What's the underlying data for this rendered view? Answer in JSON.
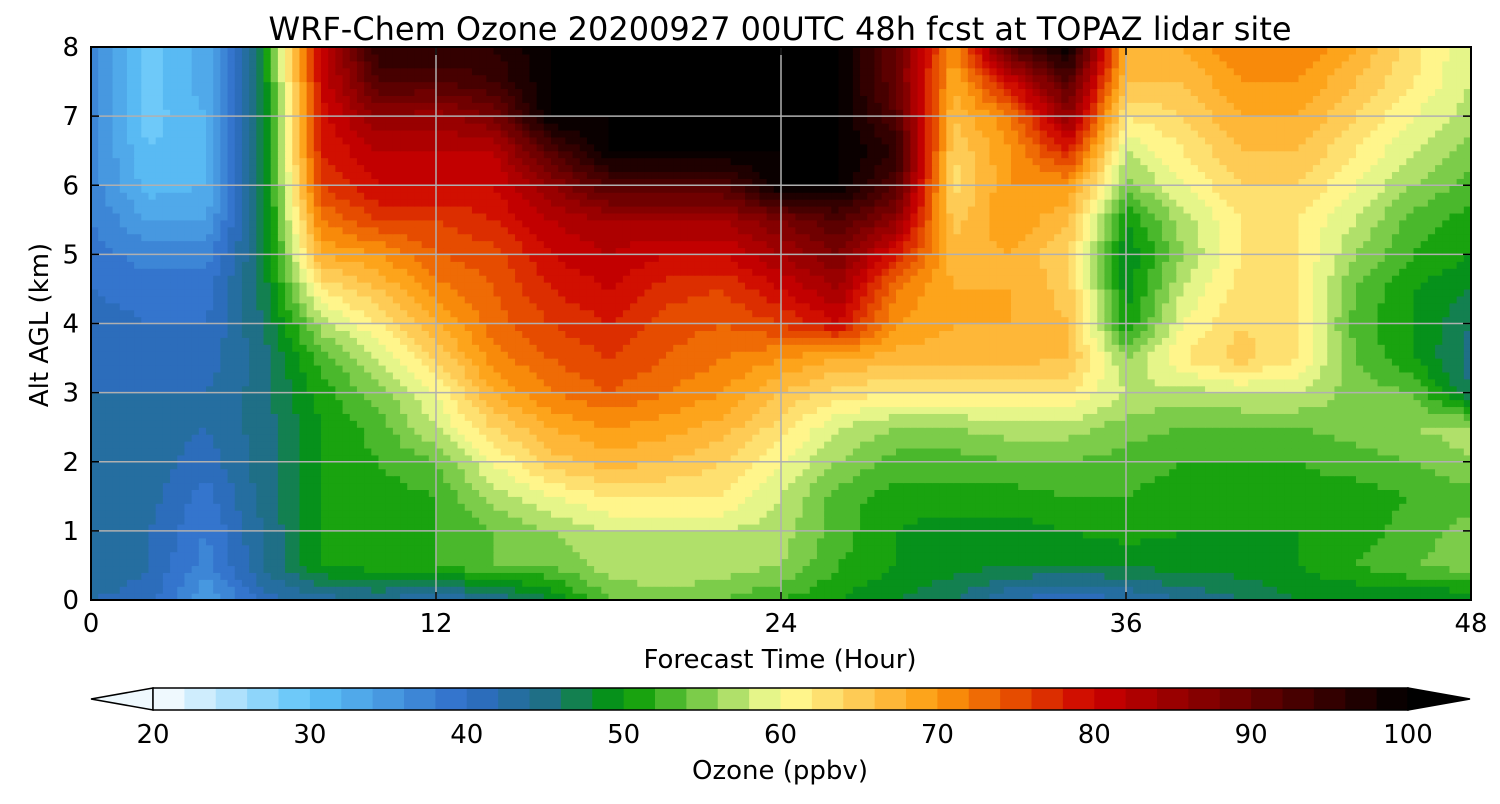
{
  "chart_data": {
    "type": "heatmap",
    "title": "WRF-Chem Ozone 20200927 00UTC 48h fcst at TOPAZ lidar site",
    "xlabel": "Forecast Time (Hour)",
    "ylabel": "Alt AGL (km)",
    "xlim": [
      0,
      48
    ],
    "ylim": [
      0,
      8
    ],
    "xticks": [
      0,
      12,
      24,
      36,
      48
    ],
    "yticks": [
      0,
      1,
      2,
      3,
      4,
      5,
      6,
      7,
      8
    ],
    "grid": true,
    "colorbar": {
      "label": "Ozone  (ppbv)",
      "min": 20,
      "max": 100,
      "ticks": [
        20,
        30,
        40,
        50,
        60,
        70,
        80,
        90,
        100
      ],
      "extend": "both",
      "stops": [
        {
          "value": 20,
          "color": "#ffffff"
        },
        {
          "value": 30,
          "color": "#5ec3f8"
        },
        {
          "value": 40,
          "color": "#2f6cc8"
        },
        {
          "value": 45,
          "color": "#1f6f86"
        },
        {
          "value": 50,
          "color": "#009900"
        },
        {
          "value": 55,
          "color": "#7ccc4a"
        },
        {
          "value": 60,
          "color": "#ffff99"
        },
        {
          "value": 65,
          "color": "#fecb55"
        },
        {
          "value": 70,
          "color": "#fd9a0c"
        },
        {
          "value": 75,
          "color": "#e64c00"
        },
        {
          "value": 80,
          "color": "#cc0000"
        },
        {
          "value": 90,
          "color": "#660000"
        },
        {
          "value": 100,
          "color": "#000000"
        }
      ]
    },
    "grid_x": [
      0,
      2,
      4,
      6,
      8,
      10,
      12,
      14,
      16,
      18,
      20,
      22,
      24,
      26,
      28,
      30,
      32,
      34,
      36,
      38,
      40,
      42,
      44,
      46,
      48
    ],
    "grid_y": [
      0,
      0.5,
      1,
      1.5,
      2,
      2.5,
      3,
      3.5,
      4,
      4.5,
      5,
      5.5,
      6,
      6.5,
      7,
      7.5,
      8
    ],
    "z": [
      [
        42,
        41,
        34,
        41,
        43,
        44,
        42,
        44,
        48,
        54,
        55,
        54,
        52,
        50,
        48,
        46,
        42,
        40,
        42,
        44,
        46,
        48,
        48,
        48,
        48
      ],
      [
        44,
        42,
        37,
        44,
        50,
        51,
        52,
        54,
        54,
        57,
        58,
        57,
        56,
        52,
        50,
        49,
        48,
        48,
        48,
        49,
        49,
        50,
        52,
        54,
        55
      ],
      [
        44,
        42,
        38,
        44,
        50,
        51,
        52,
        54,
        56,
        58,
        58,
        58,
        57,
        53,
        50,
        49,
        49,
        50,
        51,
        50,
        50,
        50,
        51,
        53,
        55
      ],
      [
        44,
        43,
        39,
        45,
        50,
        51,
        52,
        57,
        60,
        62,
        62,
        62,
        58,
        53,
        51,
        51,
        51,
        52,
        52,
        51,
        51,
        51,
        51,
        52,
        53
      ],
      [
        44,
        43,
        41,
        45,
        50,
        52,
        54,
        60,
        65,
        67,
        66,
        64,
        60,
        56,
        53,
        53,
        54,
        54,
        53,
        52,
        52,
        52,
        53,
        54,
        56
      ],
      [
        43,
        43,
        42,
        45,
        50,
        53,
        58,
        64,
        68,
        70,
        69,
        67,
        63,
        58,
        56,
        56,
        57,
        57,
        55,
        54,
        54,
        54,
        55,
        56,
        57
      ],
      [
        42,
        42,
        42,
        45,
        51,
        55,
        60,
        68,
        72,
        74,
        72,
        70,
        66,
        63,
        62,
        62,
        62,
        62,
        58,
        57,
        58,
        58,
        55,
        54,
        46
      ],
      [
        41,
        41,
        41,
        45,
        53,
        58,
        64,
        71,
        74,
        76,
        74,
        72,
        70,
        68,
        67,
        67,
        67,
        66,
        56,
        62,
        65,
        62,
        54,
        50,
        45
      ],
      [
        41,
        40,
        40,
        46,
        57,
        62,
        68,
        73,
        76,
        78,
        75,
        74,
        76,
        80,
        70,
        68,
        68,
        66,
        50,
        60,
        64,
        62,
        53,
        50,
        46
      ],
      [
        40,
        39,
        39,
        47,
        62,
        66,
        71,
        74,
        78,
        80,
        77,
        76,
        80,
        84,
        72,
        68,
        68,
        65,
        49,
        58,
        63,
        62,
        54,
        50,
        48
      ],
      [
        39,
        37,
        37,
        47,
        68,
        70,
        74,
        75,
        80,
        82,
        80,
        80,
        84,
        88,
        78,
        67,
        68,
        64,
        48,
        56,
        62,
        62,
        56,
        52,
        50
      ],
      [
        38,
        34,
        34,
        47,
        72,
        76,
        76,
        78,
        82,
        84,
        84,
        84,
        88,
        92,
        86,
        65,
        70,
        66,
        50,
        57,
        62,
        62,
        58,
        53,
        51
      ],
      [
        37,
        31,
        32,
        47,
        76,
        80,
        80,
        80,
        86,
        92,
        92,
        92,
        100,
        100,
        92,
        63,
        70,
        70,
        55,
        60,
        64,
        64,
        60,
        56,
        53
      ],
      [
        37,
        30,
        32,
        47,
        78,
        82,
        82,
        82,
        92,
        100,
        100,
        100,
        100,
        100,
        96,
        64,
        70,
        78,
        58,
        62,
        66,
        66,
        62,
        58,
        55
      ],
      [
        37,
        29,
        32,
        47,
        79,
        86,
        85,
        88,
        100,
        100,
        100,
        100,
        100,
        100,
        92,
        66,
        72,
        86,
        62,
        64,
        68,
        68,
        64,
        60,
        57
      ],
      [
        37,
        29,
        33,
        48,
        80,
        92,
        92,
        94,
        100,
        100,
        100,
        100,
        100,
        100,
        90,
        68,
        80,
        92,
        66,
        66,
        70,
        70,
        66,
        62,
        58
      ],
      [
        37,
        29,
        33,
        48,
        80,
        96,
        96,
        96,
        100,
        100,
        100,
        100,
        100,
        100,
        90,
        70,
        92,
        100,
        68,
        68,
        72,
        72,
        68,
        63,
        58
      ]
    ]
  }
}
